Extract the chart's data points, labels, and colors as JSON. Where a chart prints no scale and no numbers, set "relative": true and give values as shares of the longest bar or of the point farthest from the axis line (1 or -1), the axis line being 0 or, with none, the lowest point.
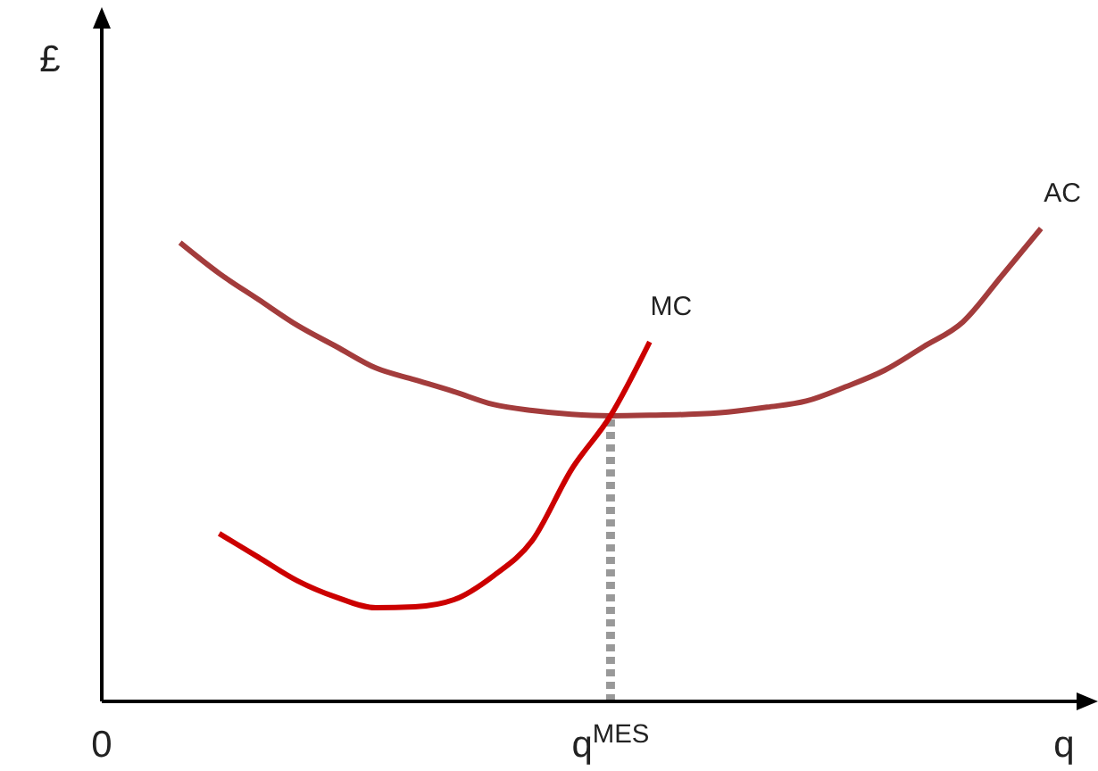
{
  "chart_data": {
    "type": "line",
    "relative": true,
    "xlabel": "q",
    "ylabel": "£",
    "categories": [
      "0",
      null,
      null,
      null,
      null,
      null,
      null,
      null,
      null,
      null,
      null,
      null,
      null,
      "q$^{MES}$",
      null,
      null,
      null,
      null,
      null,
      null,
      null,
      null,
      null,
      null,
      null,
      null
    ],
    "grid": false,
    "legend": false,
    "marker": "none",
    "ref_lines": [
      {
        "axis": "x",
        "value": "q$^{MES}$",
        "color": "#999999",
        "line_style": "dotted"
      }
    ],
    "series": [
      {
        "name": "AC",
        "color": "#a33c3c",
        "values": [
          null,
          null,
          0.97,
          0.905,
          0.85,
          0.795,
          0.75,
          0.705,
          0.68,
          0.655,
          0.628,
          0.615,
          0.607,
          0.604,
          0.605,
          0.607,
          0.612,
          0.622,
          0.635,
          0.665,
          0.7,
          0.75,
          0.802,
          0.9,
          1,
          null
        ]
      },
      {
        "name": "MC",
        "color": "#cc0000",
        "values": [
          null,
          null,
          null,
          0.355,
          0.305,
          0.255,
          0.22,
          0.198,
          0.2,
          0.215,
          0.265,
          0.34,
          0.49,
          0.604,
          0.76,
          null,
          null,
          null,
          null,
          null,
          null,
          null,
          null,
          null,
          null,
          null
        ]
      }
    ]
  }
}
